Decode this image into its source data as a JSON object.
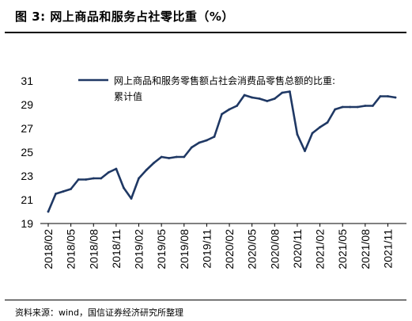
{
  "header": {
    "title": "图 3:  网上商品和服务占社零比重（%）"
  },
  "footer": {
    "source": "资料来源：wind，国信证券经济研究所整理"
  },
  "chart_data": {
    "type": "line",
    "title": "",
    "xlabel": "",
    "ylabel": "",
    "ylim": [
      19,
      31
    ],
    "yticks": [
      19,
      21,
      23,
      25,
      27,
      29,
      31
    ],
    "xtick_labels": [
      "2018/02",
      "2018/05",
      "2018/08",
      "2018/11",
      "2019/02",
      "2019/05",
      "2019/08",
      "2019/11",
      "2020/02",
      "2020/05",
      "2020/08",
      "2020/11",
      "2021/02",
      "2021/05",
      "2021/08",
      "2021/11"
    ],
    "grid": false,
    "legend_position": "top-center",
    "series_color": "#1f3864",
    "x": [
      "2018/02",
      "2018/03",
      "2018/04",
      "2018/05",
      "2018/06",
      "2018/07",
      "2018/08",
      "2018/09",
      "2018/10",
      "2018/11",
      "2018/12",
      "2019/01",
      "2019/02",
      "2019/03",
      "2019/04",
      "2019/05",
      "2019/06",
      "2019/07",
      "2019/08",
      "2019/09",
      "2019/10",
      "2019/11",
      "2019/12",
      "2020/01",
      "2020/02",
      "2020/03",
      "2020/04",
      "2020/05",
      "2020/06",
      "2020/07",
      "2020/08",
      "2020/09",
      "2020/10",
      "2020/11",
      "2020/12",
      "2021/01",
      "2021/02",
      "2021/03",
      "2021/04",
      "2021/05",
      "2021/06",
      "2021/07",
      "2021/08",
      "2021/09",
      "2021/10",
      "2021/11",
      "2021/12"
    ],
    "series": [
      {
        "name": "网上商品和服务零售额占社会消费品零售总额的比重:累计值",
        "values": [
          20.0,
          21.5,
          21.7,
          21.9,
          22.7,
          22.7,
          22.8,
          22.8,
          23.3,
          23.6,
          22.0,
          21.1,
          22.8,
          23.5,
          24.1,
          24.6,
          24.5,
          24.6,
          24.6,
          25.4,
          25.8,
          26.0,
          26.3,
          28.2,
          28.6,
          28.9,
          29.8,
          29.6,
          29.5,
          29.3,
          29.5,
          30.0,
          30.1,
          26.5,
          25.1,
          26.6,
          27.1,
          27.5,
          28.6,
          28.8,
          28.8,
          28.8,
          28.9,
          28.9,
          29.7,
          29.7,
          29.6
        ]
      }
    ]
  }
}
